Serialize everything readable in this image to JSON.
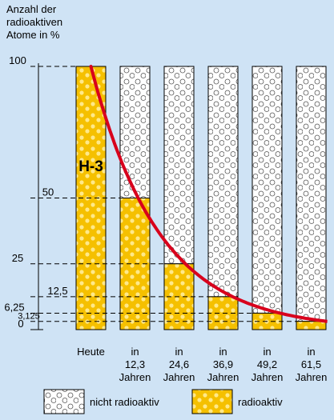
{
  "chart_data": {
    "type": "bar",
    "y_label": [
      "Anzahl der",
      "radioaktiven",
      "Atome in %"
    ],
    "annotation": "H-3",
    "categories": [
      "Heute",
      "in 12,3 Jahren",
      "in 24,6 Jahren",
      "in 36,9 Jahren",
      "in 49,2 Jahren",
      "in 61,5 Jahren"
    ],
    "series": [
      {
        "name": "radioaktiv",
        "color": "#f5c000",
        "values": [
          100,
          50,
          25,
          12.5,
          6.25,
          3.125
        ]
      },
      {
        "name": "nicht radioaktiv",
        "color": "#ffffff",
        "values": [
          0,
          50,
          75,
          87.5,
          93.75,
          96.875
        ]
      }
    ],
    "curve_color": "#d8001c",
    "ylim": [
      0,
      100
    ],
    "yticks": [
      100,
      50,
      25,
      {
        "value": 12.5,
        "label": "12,5"
      },
      {
        "value": 6.25,
        "label": "6,25"
      },
      {
        "value": 3.125,
        "label": "3,125"
      },
      0
    ]
  }
}
